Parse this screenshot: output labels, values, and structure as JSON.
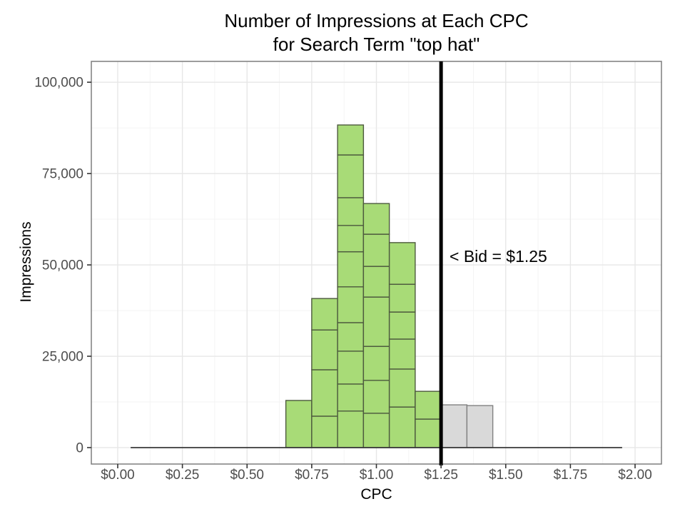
{
  "title": {
    "line1": "Number of Impressions at Each CPC",
    "line2": "for Search Term \"top hat\""
  },
  "colors": {
    "green_fill": "#a8db77",
    "green_stroke": "#4d5a3e",
    "gray_fill": "#d9d9d9",
    "gray_stroke": "#818181",
    "grid_major": "#e7e7e7",
    "grid_minor": "#f3f3f3",
    "panel_border": "#7d7d7d",
    "axis_text": "#4d4d4d",
    "tick_mark": "#333333",
    "zero_line": "#3a3a3a",
    "bid_line": "#000000"
  },
  "chart_data": {
    "type": "bar",
    "subtype": "stacked-histogram",
    "title": "Number of Impressions at Each CPC for Search Term \"top hat\"",
    "xlabel": "CPC",
    "ylabel": "Impressions",
    "grid": true,
    "legend": false,
    "xlim": [
      -0.102,
      2.102
    ],
    "ylim": [
      -4500,
      105700
    ],
    "x_tick_values": [
      0.0,
      0.25,
      0.5,
      0.75,
      1.0,
      1.25,
      1.5,
      1.75,
      2.0
    ],
    "x_tick_labels": [
      "$0.00",
      "$0.25",
      "$0.50",
      "$0.75",
      "$1.00",
      "$1.25",
      "$1.50",
      "$1.75",
      "$2.00"
    ],
    "x_minor": [
      0.125,
      0.375,
      0.625,
      0.875,
      1.125,
      1.375,
      1.625,
      1.875
    ],
    "y_tick_values": [
      0,
      25000,
      50000,
      75000,
      100000
    ],
    "y_tick_labels": [
      "0",
      "25,000",
      "50,000",
      "75,000",
      "100,000"
    ],
    "y_minor": [
      12500,
      37500,
      62500,
      87500
    ],
    "bin_width": 0.1,
    "zero_bins_extent": [
      0.05,
      1.95
    ],
    "vline": {
      "x": 1.25,
      "label": "< Bid = $1.25"
    },
    "bars": [
      {
        "bin_start": 0.65,
        "bin_end": 0.75,
        "color": "green",
        "total": 12900,
        "segments": [
          12900
        ]
      },
      {
        "bin_start": 0.75,
        "bin_end": 0.85,
        "color": "green",
        "total": 40800,
        "segments": [
          8600,
          12700,
          10900,
          8600
        ]
      },
      {
        "bin_start": 0.85,
        "bin_end": 0.95,
        "color": "green",
        "total": 88300,
        "segments": [
          10000,
          7400,
          9000,
          7800,
          9800,
          9600,
          7200,
          7600,
          11700,
          8200
        ]
      },
      {
        "bin_start": 0.95,
        "bin_end": 1.05,
        "color": "green",
        "total": 66800,
        "segments": [
          9400,
          9000,
          9300,
          13500,
          8400,
          8800,
          8400
        ]
      },
      {
        "bin_start": 1.05,
        "bin_end": 1.15,
        "color": "green",
        "total": 56100,
        "segments": [
          11100,
          10400,
          8200,
          7400,
          7600,
          11400
        ]
      },
      {
        "bin_start": 1.15,
        "bin_end": 1.25,
        "color": "green",
        "total": 15400,
        "segments": [
          7800,
          7600
        ]
      },
      {
        "bin_start": 1.25,
        "bin_end": 1.35,
        "color": "gray",
        "total": 11700,
        "segments": [
          11700
        ]
      },
      {
        "bin_start": 1.35,
        "bin_end": 1.45,
        "color": "gray",
        "total": 11500,
        "segments": [
          11500
        ]
      }
    ]
  }
}
